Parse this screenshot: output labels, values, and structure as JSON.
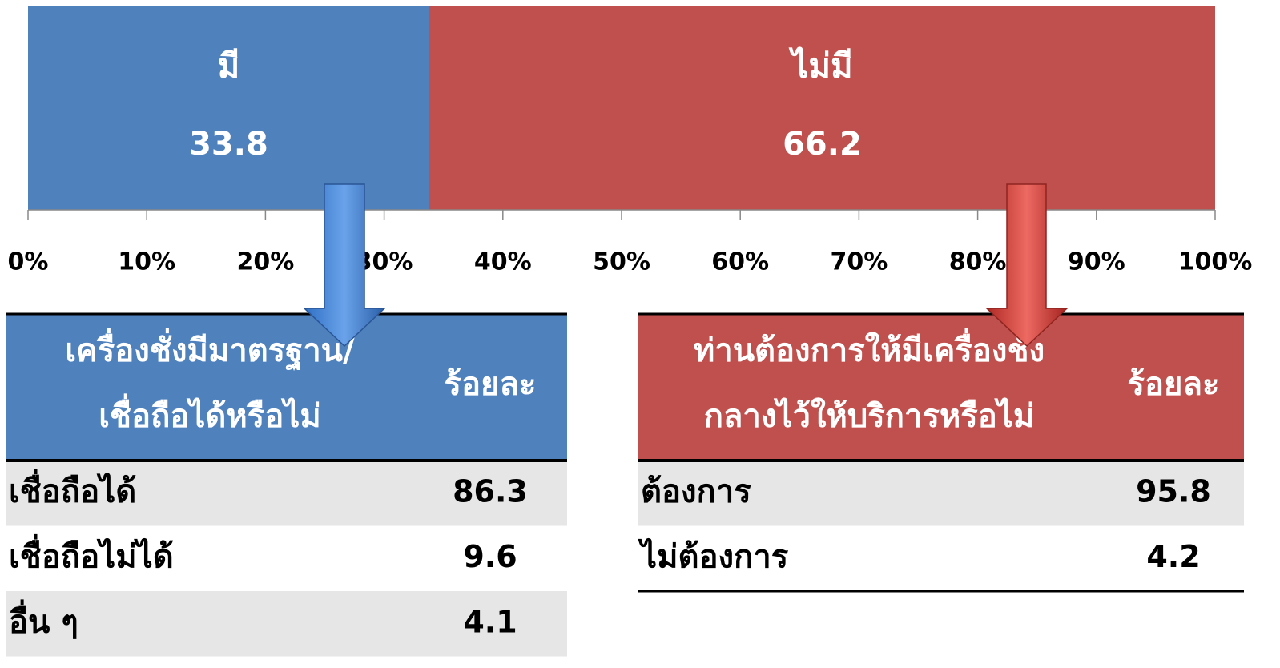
{
  "chart_data": {
    "type": "stacked-bar",
    "categories": [
      null
    ],
    "series": [
      {
        "name": "มี",
        "color": "#4f81bd",
        "values": [
          33.8
        ]
      },
      {
        "name": "ไม่มี",
        "color": "#c0504d",
        "values": [
          66.2
        ]
      }
    ],
    "xlim": [
      0,
      100
    ],
    "xticks": [
      {
        "value": 0,
        "label": "0%"
      },
      {
        "value": 10,
        "label": "10%"
      },
      {
        "value": 20,
        "label": "20%"
      },
      {
        "value": 30,
        "label": "30%"
      },
      {
        "value": 40,
        "label": "40%"
      },
      {
        "value": 50,
        "label": "50%"
      },
      {
        "value": 60,
        "label": "60%"
      },
      {
        "value": 70,
        "label": "70%"
      },
      {
        "value": 80,
        "label": "80%"
      },
      {
        "value": 90,
        "label": "90%"
      },
      {
        "value": 100,
        "label": "100%"
      }
    ]
  },
  "tables": [
    {
      "color": "#4f81bd",
      "header": [
        [
          "เครื่องชั่งมีมาตรฐาน/",
          "เชื่อถือได้หรือไม่"
        ],
        "ร้อยละ"
      ],
      "rows": [
        [
          "เชื่อถือได้",
          86.3
        ],
        [
          "เชื่อถือไม่ได้",
          9.6
        ],
        [
          "อื่น ๆ",
          4.1
        ]
      ]
    },
    {
      "color": "#c0504d",
      "header": [
        [
          "ท่านต้องการให้มีเครื่องชั่ง",
          "กลางไว้ให้บริการหรือไม่"
        ],
        "ร้อยละ"
      ],
      "rows": [
        [
          "ต้องการ",
          95.8
        ],
        [
          "ไม่ต้องการ",
          4.2
        ]
      ]
    }
  ]
}
